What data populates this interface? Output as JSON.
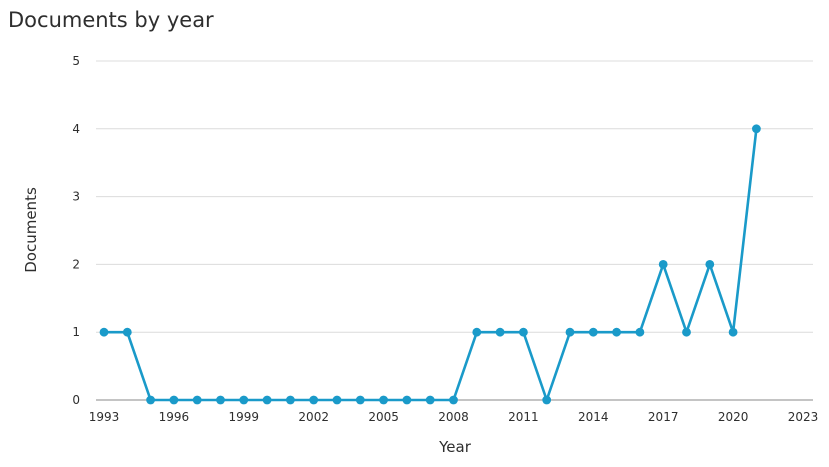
{
  "chart_data": {
    "type": "line",
    "title": "Documents by year",
    "xlabel": "Year",
    "ylabel": "Documents",
    "xlim": [
      1993,
      2023
    ],
    "ylim": [
      0,
      5
    ],
    "x_ticks": [
      "1993",
      "1996",
      "1999",
      "2002",
      "2005",
      "2008",
      "2011",
      "2014",
      "2017",
      "2020",
      "2023"
    ],
    "y_ticks": [
      "0",
      "1",
      "2",
      "3",
      "4",
      "5"
    ],
    "grid": true,
    "series": [
      {
        "color": "#1a9ac9",
        "x": [
          1993,
          1994,
          1995,
          1996,
          1997,
          1998,
          1999,
          2000,
          2001,
          2002,
          2003,
          2004,
          2005,
          2006,
          2007,
          2008,
          2009,
          2010,
          2011,
          2012,
          2013,
          2014,
          2015,
          2016,
          2017,
          2018,
          2019,
          2020,
          2021
        ],
        "values": [
          1,
          1,
          0,
          0,
          0,
          0,
          0,
          0,
          0,
          0,
          0,
          0,
          0,
          0,
          0,
          0,
          1,
          1,
          1,
          0,
          1,
          1,
          1,
          1,
          2,
          1,
          2,
          1,
          4
        ]
      }
    ]
  },
  "colors": {
    "gridline": "#dcdcdc",
    "axis": "#8a8a8a"
  }
}
